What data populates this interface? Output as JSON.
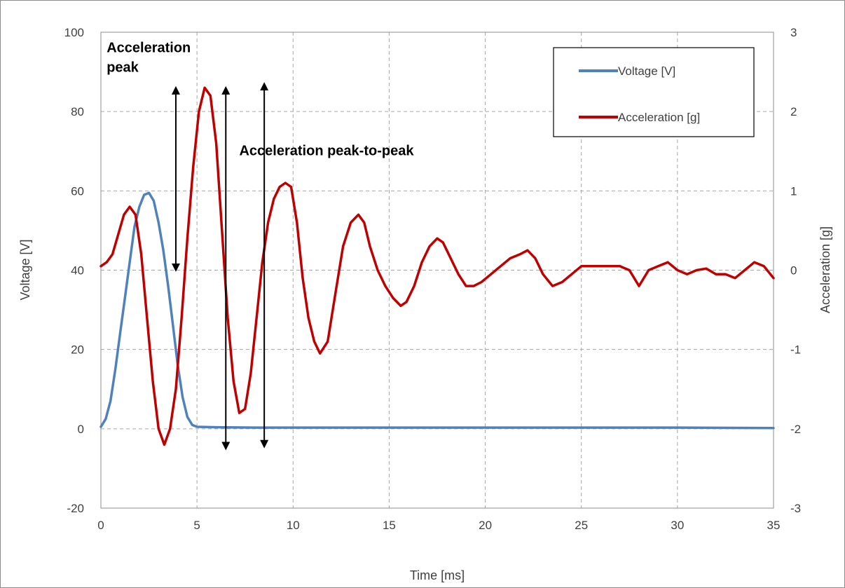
{
  "chart_data": {
    "type": "line",
    "xlabel": "Time [ms]",
    "ylabel_left": "Voltage [V]",
    "ylabel_right": "Acceleration [g]",
    "xlim": [
      0,
      35
    ],
    "xticks": [
      0,
      5,
      10,
      15,
      20,
      25,
      30,
      35
    ],
    "ylim_left": [
      -20,
      100
    ],
    "yticks_left": [
      -20,
      0,
      20,
      40,
      60,
      80,
      100
    ],
    "ylim_right": [
      -3,
      3
    ],
    "yticks_right": [
      -3,
      -2,
      -1,
      0,
      1,
      2,
      3
    ],
    "grid": true,
    "legend_position": "top-right",
    "series": [
      {
        "name": "Voltage [V]",
        "axis": "left",
        "color": "#4f81bd",
        "x": [
          0,
          0.25,
          0.5,
          0.75,
          1.0,
          1.25,
          1.5,
          1.75,
          2.0,
          2.25,
          2.5,
          2.75,
          3.0,
          3.25,
          3.5,
          3.75,
          4.0,
          4.25,
          4.5,
          4.75,
          5.0,
          6,
          8,
          10,
          15,
          20,
          25,
          30,
          35
        ],
        "values": [
          0.5,
          2.5,
          7,
          15,
          24,
          33,
          42,
          51,
          56,
          59,
          59.5,
          57.5,
          52,
          45,
          36,
          26,
          16,
          8,
          3,
          1,
          0.5,
          0.4,
          0.3,
          0.3,
          0.3,
          0.3,
          0.3,
          0.3,
          0.2
        ]
      },
      {
        "name": "Acceleration [g]",
        "axis": "right",
        "color": "#c00000",
        "x": [
          0,
          0.3,
          0.6,
          0.9,
          1.2,
          1.5,
          1.8,
          2.1,
          2.4,
          2.7,
          3.0,
          3.3,
          3.6,
          3.9,
          4.2,
          4.5,
          4.8,
          5.1,
          5.4,
          5.7,
          6.0,
          6.3,
          6.6,
          6.9,
          7.2,
          7.5,
          7.8,
          8.1,
          8.4,
          8.7,
          9.0,
          9.3,
          9.6,
          9.9,
          10.2,
          10.5,
          10.8,
          11.1,
          11.4,
          11.8,
          12.2,
          12.6,
          13.0,
          13.4,
          13.7,
          14.0,
          14.4,
          14.8,
          15.2,
          15.6,
          15.9,
          16.3,
          16.7,
          17.1,
          17.5,
          17.8,
          18.2,
          18.6,
          19.0,
          19.4,
          19.8,
          20.3,
          20.8,
          21.3,
          21.8,
          22.2,
          22.6,
          23.0,
          23.5,
          24.0,
          24.5,
          25.0,
          25.5,
          26.0,
          26.5,
          27.0,
          27.5,
          28.0,
          28.5,
          29.0,
          29.5,
          30.0,
          30.5,
          31.0,
          31.5,
          32.0,
          32.5,
          33.0,
          33.5,
          34.0,
          34.5,
          35.0
        ],
        "values": [
          0.05,
          0.1,
          0.2,
          0.45,
          0.7,
          0.8,
          0.7,
          0.2,
          -0.6,
          -1.4,
          -2.0,
          -2.2,
          -2.0,
          -1.5,
          -0.6,
          0.4,
          1.3,
          2.0,
          2.3,
          2.2,
          1.6,
          0.5,
          -0.6,
          -1.4,
          -1.8,
          -1.75,
          -1.3,
          -0.6,
          0.1,
          0.6,
          0.9,
          1.05,
          1.1,
          1.05,
          0.6,
          -0.1,
          -0.6,
          -0.9,
          -1.05,
          -0.9,
          -0.3,
          0.3,
          0.6,
          0.7,
          0.6,
          0.3,
          0.0,
          -0.2,
          -0.35,
          -0.45,
          -0.4,
          -0.2,
          0.1,
          0.3,
          0.4,
          0.35,
          0.15,
          -0.05,
          -0.2,
          -0.2,
          -0.15,
          -0.05,
          0.05,
          0.15,
          0.2,
          0.25,
          0.15,
          -0.05,
          -0.2,
          -0.15,
          -0.05,
          0.05,
          0.05,
          0.05,
          0.05,
          0.05,
          0.0,
          -0.2,
          0.0,
          0.05,
          0.1,
          0.0,
          -0.05,
          0.0,
          0.02,
          -0.05,
          -0.05,
          -0.1,
          0.0,
          0.1,
          0.05,
          -0.1
        ]
      }
    ],
    "annotations": [
      {
        "text": "Acceleration",
        "x": 0.3,
        "y": 95,
        "axis": "left"
      },
      {
        "text": "peak",
        "x": 0.3,
        "y": 90,
        "axis": "left"
      },
      {
        "text": "Acceleration peak-to-peak",
        "x": 7.2,
        "y": 69,
        "axis": "left"
      }
    ],
    "arrows": [
      {
        "x": 3.9,
        "y1": 40,
        "y2": 86,
        "axis": "left"
      },
      {
        "x": 6.5,
        "y1": -5,
        "y2": 86,
        "axis": "left"
      },
      {
        "x": 8.5,
        "y1": -4.5,
        "y2": 87,
        "axis": "left"
      }
    ]
  }
}
